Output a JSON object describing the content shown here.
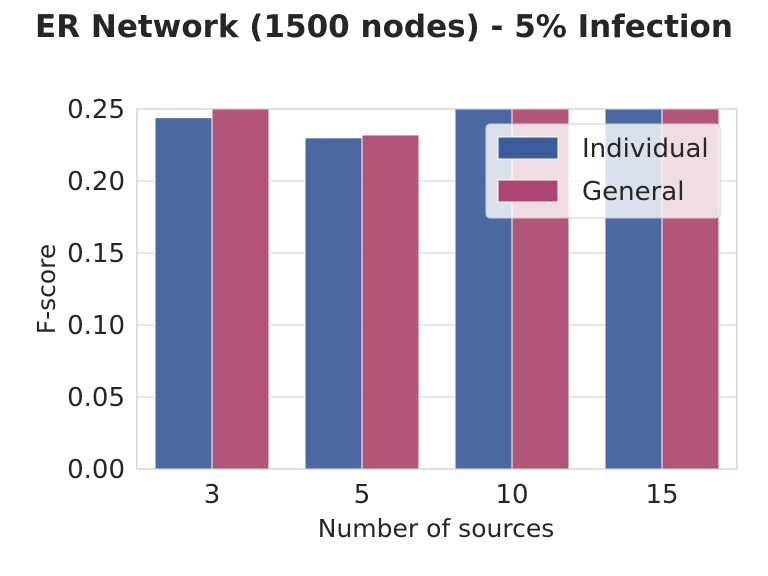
{
  "chart_data": {
    "type": "bar",
    "title": "ER Network (1500 nodes) - 5% Infection",
    "xlabel": "Number of sources",
    "ylabel": "F-score",
    "categories": [
      "3",
      "5",
      "10",
      "15"
    ],
    "series": [
      {
        "name": "Individual",
        "values": [
          0.244,
          0.23,
          0.25,
          0.25
        ]
      },
      {
        "name": "General",
        "values": [
          0.25,
          0.232,
          0.25,
          0.25
        ]
      }
    ],
    "ylim": [
      0,
      0.25
    ],
    "yticks": [
      "0.00",
      "0.05",
      "0.10",
      "0.15",
      "0.20",
      "0.25"
    ],
    "grid": true,
    "legend_position": "top-right",
    "colors": {
      "Individual": "#3b5c9a",
      "General": "#ad4570",
      "grid": "#cccccc",
      "text": "#262626"
    }
  }
}
